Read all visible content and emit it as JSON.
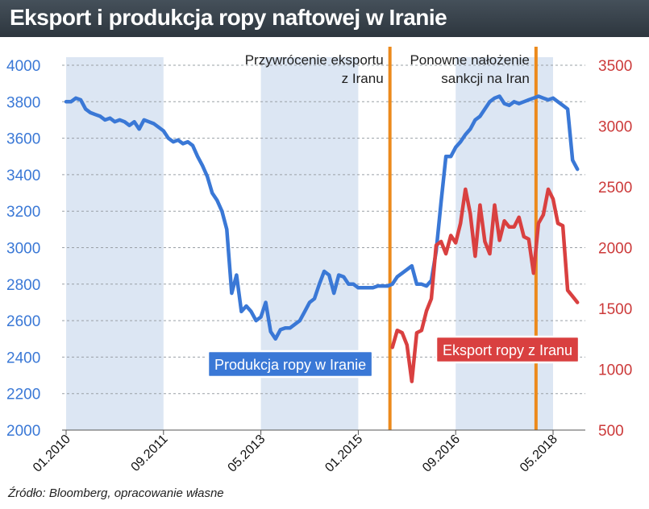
{
  "title": "Eksport i produkcja ropy naftowej w Iranie",
  "source": "Źródło: Bloomberg, opracowanie własne",
  "colors": {
    "production": "#3a78d6",
    "export": "#d94040",
    "marker": "#ec8a1c",
    "left_axis": "#3a78d6",
    "right_axis": "#cc3a3a",
    "band": "#dce6f3"
  },
  "chart_data": {
    "type": "line",
    "title": "Eksport i produkcja ropy naftowej w Iranie",
    "x_tick_labels": [
      "01.2010",
      "09.2011",
      "05.2013",
      "01.2015",
      "09.2016",
      "05.2018"
    ],
    "x_tick_months": [
      0,
      20,
      40,
      60,
      80,
      100
    ],
    "xlim_months": [
      0,
      106
    ],
    "y_left": {
      "ylim": [
        2000,
        4000
      ],
      "ticks": [
        "2000",
        "2200",
        "2400",
        "2600",
        "2800",
        "3000",
        "3200",
        "3400",
        "3600",
        "3800",
        "4000"
      ]
    },
    "y_right": {
      "ylim": [
        500,
        3500
      ],
      "ticks": [
        "500",
        "1000",
        "1500",
        "2000",
        "2500",
        "3000",
        "3500"
      ]
    },
    "grid": true,
    "annotations": [
      {
        "label_lines": [
          "Przywrócenie eksportu",
          "z Iranu"
        ],
        "x_month": 66.5
      },
      {
        "label_lines": [
          "Ponowne nałożenie",
          "sankcji na Iran"
        ],
        "x_month": 96.5
      }
    ],
    "series": [
      {
        "name": "Produkcja ropy w Iranie",
        "axis": "left",
        "x_month": [
          0,
          1,
          2,
          3,
          4,
          5,
          6,
          7,
          8,
          9,
          10,
          11,
          12,
          13,
          14,
          15,
          16,
          17,
          18,
          19,
          20,
          21,
          22,
          23,
          24,
          25,
          26,
          27,
          28,
          29,
          30,
          31,
          32,
          33,
          34,
          35,
          36,
          37,
          38,
          39,
          40,
          41,
          42,
          43,
          44,
          45,
          46,
          47,
          48,
          49,
          50,
          51,
          52,
          53,
          54,
          55,
          56,
          57,
          58,
          59,
          60,
          61,
          62,
          63,
          64,
          65,
          66,
          67,
          68,
          69,
          70,
          71,
          72,
          73,
          74,
          75,
          76,
          77,
          78,
          79,
          80,
          81,
          82,
          83,
          84,
          85,
          86,
          87,
          88,
          89,
          90,
          91,
          92,
          93,
          94,
          95,
          96,
          97,
          98,
          99,
          100,
          101,
          102,
          103,
          104,
          105
        ],
        "values": [
          3800,
          3800,
          3820,
          3810,
          3760,
          3740,
          3730,
          3720,
          3700,
          3710,
          3690,
          3700,
          3690,
          3670,
          3690,
          3650,
          3700,
          3690,
          3680,
          3660,
          3640,
          3600,
          3580,
          3590,
          3570,
          3580,
          3560,
          3500,
          3450,
          3390,
          3300,
          3260,
          3200,
          3100,
          2750,
          2850,
          2650,
          2680,
          2650,
          2600,
          2620,
          2700,
          2540,
          2500,
          2550,
          2560,
          2560,
          2580,
          2600,
          2650,
          2700,
          2720,
          2800,
          2870,
          2850,
          2750,
          2850,
          2840,
          2800,
          2800,
          2780,
          2780,
          2780,
          2780,
          2790,
          2790,
          2790,
          2800,
          2840,
          2860,
          2880,
          2900,
          2800,
          2800,
          2790,
          2820,
          2980,
          3250,
          3500,
          3500,
          3550,
          3580,
          3620,
          3650,
          3700,
          3720,
          3760,
          3800,
          3820,
          3830,
          3790,
          3780,
          3800,
          3790,
          3800,
          3810,
          3820,
          3830,
          3820,
          3810,
          3820,
          3800,
          3780,
          3760,
          3480,
          3430
        ]
      },
      {
        "name": "Eksport ropy z Iranu",
        "axis": "right",
        "x_month": [
          67,
          68,
          69,
          70,
          71,
          72,
          73,
          74,
          75,
          76,
          77,
          78,
          79,
          80,
          81,
          82,
          83,
          84,
          85,
          86,
          87,
          88,
          89,
          90,
          91,
          92,
          93,
          94,
          95,
          96,
          97,
          98,
          99,
          100,
          101,
          102,
          103,
          104,
          105
        ],
        "values": [
          1180,
          1320,
          1300,
          1200,
          900,
          1300,
          1320,
          1480,
          1580,
          2020,
          2050,
          1950,
          2100,
          2040,
          2200,
          2480,
          2280,
          1930,
          2350,
          2050,
          1950,
          2350,
          2060,
          2220,
          2170,
          2170,
          2250,
          2090,
          2070,
          1790,
          2200,
          2270,
          2480,
          2400,
          2200,
          2180,
          1650,
          1600,
          1550
        ]
      }
    ]
  },
  "legend_boxes": {
    "production": "Produkcja ropy w Iranie",
    "export": "Eksport ropy z Iranu"
  }
}
